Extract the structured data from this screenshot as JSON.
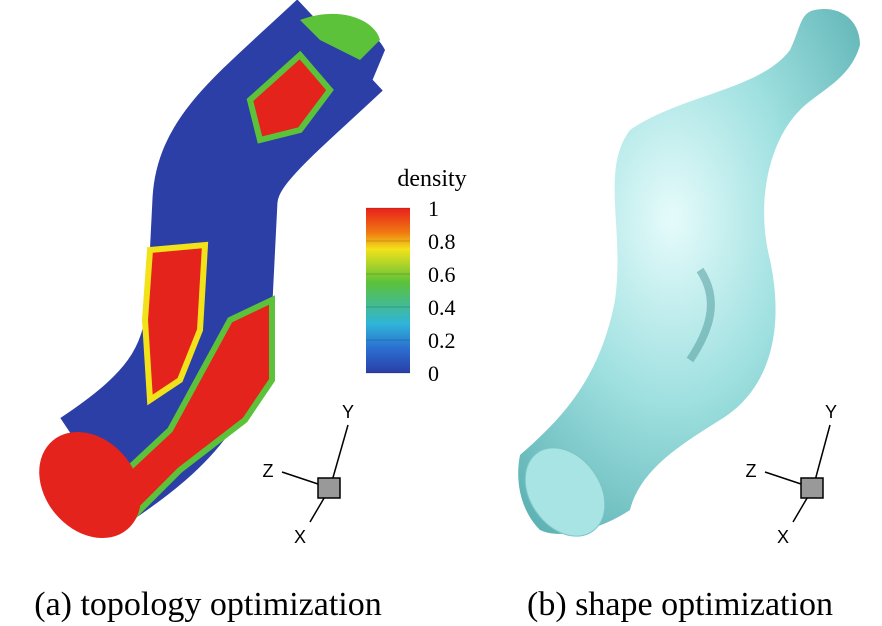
{
  "colorbar": {
    "title": "density",
    "lim": [
      0,
      1
    ],
    "ticks": [
      0,
      0.2,
      0.4,
      0.6,
      0.8,
      1
    ]
  },
  "panels": [
    {
      "caption": "(a) topology optimization",
      "triad": {
        "x": "X",
        "y": "Y",
        "z": "Z"
      }
    },
    {
      "caption": "(b) shape optimization",
      "triad": {
        "x": "X",
        "y": "Y",
        "z": "Z"
      }
    }
  ]
}
